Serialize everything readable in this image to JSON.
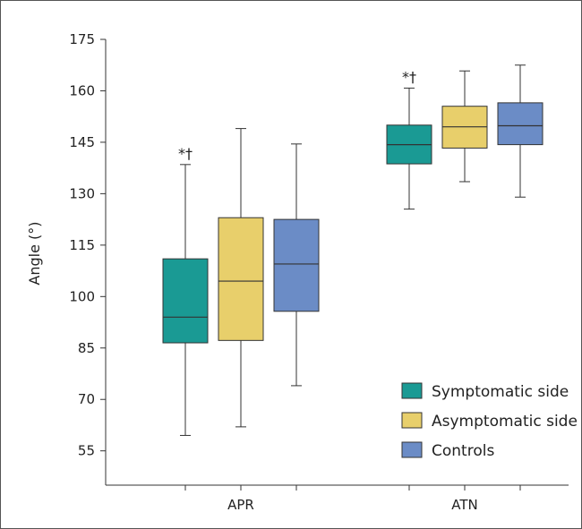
{
  "chart_data": {
    "type": "box",
    "ylabel": "Angle (°)",
    "ylim": [
      45,
      175
    ],
    "yticks": [
      55,
      70,
      85,
      100,
      115,
      130,
      145,
      160,
      175
    ],
    "categories": [
      "APR",
      "ATN"
    ],
    "series": [
      {
        "name": "Symptomatic side",
        "color": "#1a9a94",
        "boxes": [
          {
            "min": 59.5,
            "q1": 86.5,
            "median": 94,
            "q3": 111,
            "max": 138.5
          },
          {
            "min": 125.5,
            "q1": 138.7,
            "median": 144.3,
            "q3": 150,
            "max": 160.8
          }
        ]
      },
      {
        "name": "Asymptomatic side",
        "color": "#e8cf6b",
        "boxes": [
          {
            "min": 62,
            "q1": 87.2,
            "median": 104.5,
            "q3": 123,
            "max": 149
          },
          {
            "min": 133.5,
            "q1": 143.3,
            "median": 149.5,
            "q3": 155.5,
            "max": 165.8
          }
        ]
      },
      {
        "name": "Controls",
        "color": "#6b8cc6",
        "boxes": [
          {
            "min": 74,
            "q1": 95.7,
            "median": 109.5,
            "q3": 122.5,
            "max": 144.5
          },
          {
            "min": 129,
            "q1": 144.3,
            "median": 149.8,
            "q3": 156.5,
            "max": 167.5
          }
        ]
      }
    ],
    "annotations": [
      {
        "text": "*†",
        "category": "APR",
        "series": "Symptomatic side"
      },
      {
        "text": "*†",
        "category": "ATN",
        "series": "Symptomatic side"
      }
    ],
    "legend": {
      "position": "bottom-right"
    },
    "grid": false
  }
}
